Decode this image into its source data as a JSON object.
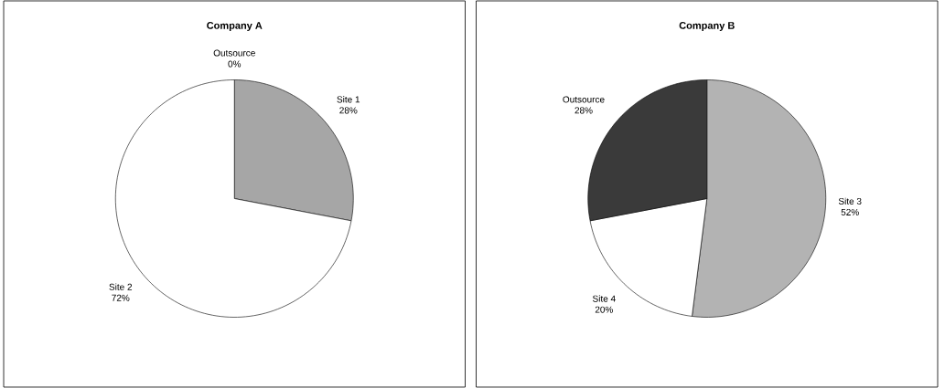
{
  "chart_data": [
    {
      "type": "pie",
      "title": "Company A",
      "categories": [
        "Outsource",
        "Site 1",
        "Site 2"
      ],
      "values": [
        0,
        28,
        72
      ],
      "value_labels": [
        "0%",
        "28%",
        "72%"
      ],
      "colors": [
        "#404040",
        "#a6a6a6",
        "#ffffff"
      ]
    },
    {
      "type": "pie",
      "title": "Company B",
      "categories": [
        "Site 3",
        "Site 4",
        "Outsource"
      ],
      "values": [
        52,
        20,
        28
      ],
      "value_labels": [
        "52%",
        "20%",
        "28%"
      ],
      "colors": [
        "#b3b3b3",
        "#ffffff",
        "#3a3a3a"
      ]
    }
  ]
}
